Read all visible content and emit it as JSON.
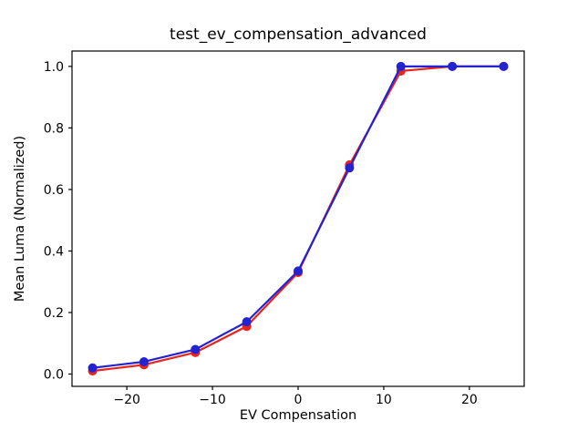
{
  "window": {
    "background": "#ffffff"
  },
  "chart_data": {
    "type": "line",
    "title": "test_ev_compensation_advanced",
    "xlabel": "EV Compensation",
    "ylabel": "Mean Luma (Normalized)",
    "x": [
      -24,
      -18,
      -12,
      -6,
      0,
      6,
      12,
      18,
      24
    ],
    "series": [
      {
        "name": "red-series",
        "color": "#e8241e",
        "marker": "circle",
        "values": [
          0.01,
          0.03,
          0.07,
          0.155,
          0.33,
          0.68,
          0.985,
          1.0,
          1.0
        ]
      },
      {
        "name": "blue-series",
        "color": "#2323d2",
        "marker": "circle",
        "values": [
          0.02,
          0.04,
          0.08,
          0.17,
          0.335,
          0.67,
          1.0,
          1.0,
          1.0
        ]
      }
    ],
    "xticks": [
      -20,
      -10,
      0,
      10,
      20
    ],
    "xtick_labels": [
      "−20",
      "−10",
      "0",
      "10",
      "20"
    ],
    "yticks": [
      0.0,
      0.2,
      0.4,
      0.6,
      0.8,
      1.0
    ],
    "ytick_labels": [
      "0.0",
      "0.2",
      "0.4",
      "0.6",
      "0.8",
      "1.0"
    ],
    "xlim": [
      -26.4,
      26.4
    ],
    "ylim": [
      -0.04,
      1.05
    ],
    "grid": false,
    "legend": "none",
    "axes_color": "#000000",
    "text_color": "#000000"
  }
}
